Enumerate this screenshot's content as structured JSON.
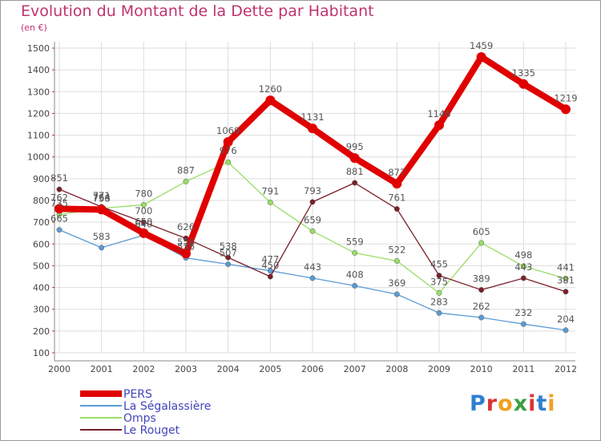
{
  "chart_data": {
    "type": "line",
    "title": "Evolution du Montant de la Dette par Habitant",
    "subtitle": "(en €)",
    "x": [
      "2000",
      "2001",
      "2002",
      "2003",
      "2004",
      "2005",
      "2006",
      "2007",
      "2008",
      "2009",
      "2010",
      "2011",
      "2012"
    ],
    "ylim": [
      100,
      1500
    ],
    "yticks": [
      100,
      200,
      300,
      400,
      500,
      600,
      700,
      800,
      900,
      1000,
      1100,
      1200,
      1300,
      1400,
      1500
    ],
    "grid": true,
    "legend_position": "bottom-left",
    "series": [
      {
        "name": "PERS",
        "color": "#e00000",
        "values": [
          762,
          758,
          650,
          556,
          1069,
          1260,
          1131,
          995,
          877,
          1146,
          1459,
          1335,
          1219
        ]
      },
      {
        "name": "La Ségalassière",
        "color": "#5b9bd5",
        "values": [
          665,
          583,
          640,
          536,
          507,
          477,
          443,
          408,
          369,
          283,
          262,
          232,
          204
        ]
      },
      {
        "name": "Omps",
        "color": "#99dd66",
        "values": [
          735,
          764,
          780,
          887,
          976,
          791,
          659,
          559,
          522,
          375,
          605,
          498,
          441
        ]
      },
      {
        "name": "Le Rouget",
        "color": "#7a1f2a",
        "values": [
          851,
          771,
          700,
          626,
          538,
          450,
          793,
          881,
          761,
          455,
          389,
          443,
          381
        ]
      }
    ]
  },
  "logo": {
    "text": "Proxiti"
  }
}
